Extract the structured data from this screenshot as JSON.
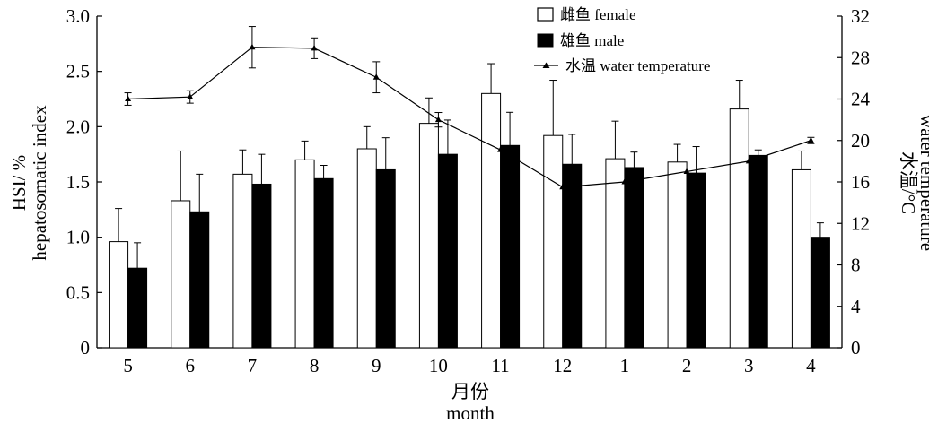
{
  "chart_data": {
    "type": "bar",
    "categories": [
      "5",
      "6",
      "7",
      "8",
      "9",
      "10",
      "11",
      "12",
      "1",
      "2",
      "3",
      "4"
    ],
    "series": [
      {
        "name": "雌鱼 female",
        "type": "bar",
        "axis": "left",
        "fill": "#ffffff",
        "values": [
          0.96,
          1.33,
          1.57,
          1.7,
          1.8,
          2.03,
          2.3,
          1.92,
          1.71,
          1.68,
          2.16,
          1.61
        ],
        "errors": [
          0.3,
          0.45,
          0.22,
          0.17,
          0.2,
          0.23,
          0.27,
          0.5,
          0.34,
          0.16,
          0.26,
          0.17
        ]
      },
      {
        "name": "雄鱼 male",
        "type": "bar",
        "axis": "left",
        "fill": "#000000",
        "values": [
          0.72,
          1.23,
          1.48,
          1.53,
          1.61,
          1.75,
          1.83,
          1.66,
          1.63,
          1.58,
          1.74,
          1.0
        ],
        "errors": [
          0.23,
          0.34,
          0.27,
          0.12,
          0.29,
          0.31,
          0.3,
          0.27,
          0.14,
          0.24,
          0.05,
          0.13
        ]
      },
      {
        "name": "水温 water temperature",
        "type": "line",
        "axis": "right",
        "marker": "triangle",
        "values": [
          24.0,
          24.2,
          29.0,
          28.9,
          26.1,
          22.0,
          19.1,
          15.5,
          16.0,
          17.0,
          18.0,
          20.0
        ],
        "errors": [
          0.6,
          0.6,
          2.0,
          1.0,
          1.5,
          0.7,
          0.0,
          0.0,
          0.0,
          0.0,
          0.0,
          0.3
        ]
      }
    ],
    "xlabel": "月份",
    "xlabel_en": "month",
    "ylabel": "HSI/ %",
    "ylabel_en": "hepatosomatic index",
    "ylim": [
      0,
      3.0
    ],
    "yticks": [
      "0",
      "0.5",
      "1.0",
      "1.5",
      "2.0",
      "2.5",
      "3.0"
    ],
    "y2label": "水温/°C",
    "y2label_en": "water temperature",
    "y2lim": [
      0,
      32
    ],
    "y2ticks": [
      "0",
      "4",
      "8",
      "12",
      "16",
      "20",
      "24",
      "28",
      "32"
    ],
    "legend_position": "top-right",
    "grid": false
  }
}
